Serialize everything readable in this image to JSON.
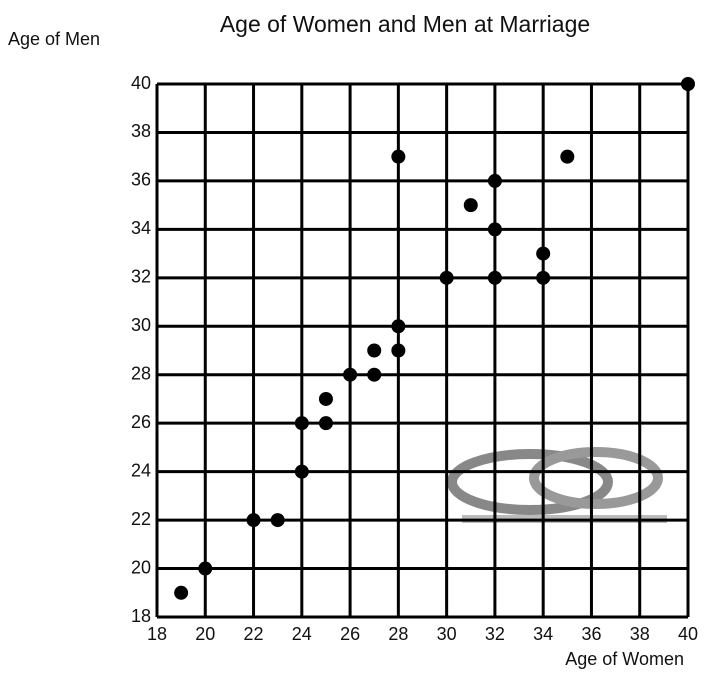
{
  "chart_data": {
    "type": "scatter",
    "title": "Age of Women and Men at Marriage",
    "xlabel": "Age of Women",
    "ylabel": "Age of Men",
    "x": [
      19,
      20,
      22,
      23,
      24,
      24,
      25,
      25,
      26,
      27,
      27,
      28,
      28,
      28,
      30,
      31,
      32,
      32,
      32,
      34,
      34,
      35,
      40
    ],
    "values": [
      19,
      20,
      22,
      22,
      24,
      26,
      26,
      27,
      28,
      28,
      29,
      29,
      30,
      37,
      32,
      35,
      32,
      34,
      36,
      32,
      33,
      37,
      40
    ],
    "color": "#000000",
    "xlim": [
      18,
      40
    ],
    "xticks": [
      18,
      20,
      22,
      24,
      26,
      28,
      30,
      32,
      34,
      36,
      38,
      40
    ],
    "ylim": [
      18,
      40
    ],
    "yticks": [
      18,
      20,
      22,
      24,
      26,
      28,
      30,
      32,
      34,
      36,
      38,
      40
    ],
    "grid": true
  }
}
